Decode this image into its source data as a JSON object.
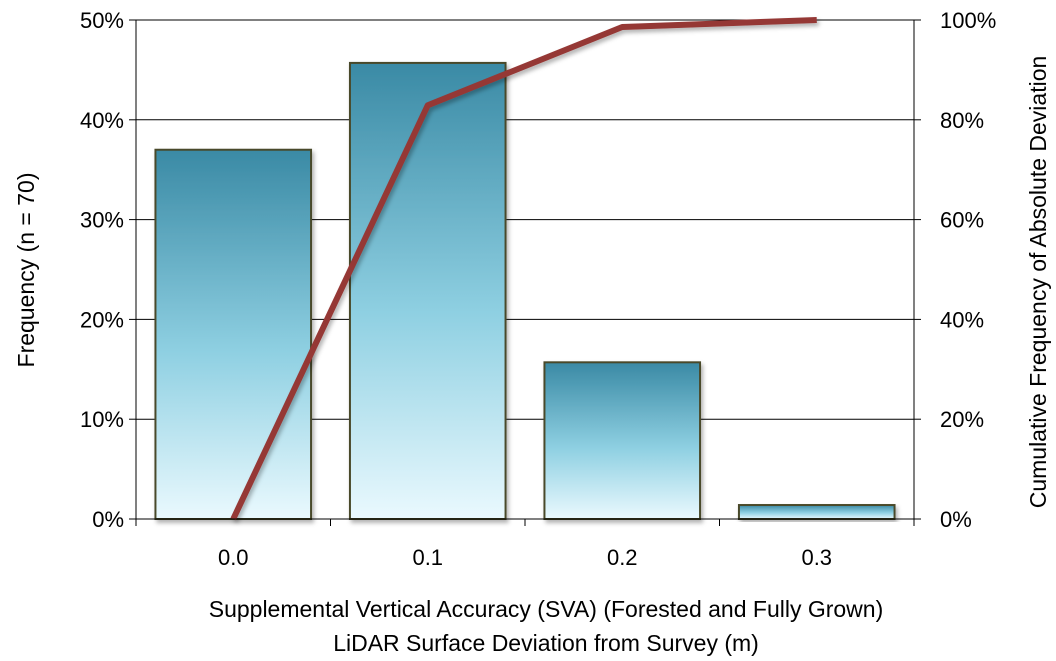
{
  "chart_data": {
    "type": "bar",
    "categories": [
      "0.0",
      "0.1",
      "0.2",
      "0.3"
    ],
    "series": [
      {
        "type": "bar",
        "axis": "left",
        "values": [
          37,
          45.7,
          15.7,
          1.4
        ],
        "color": "#3d8ca6"
      },
      {
        "type": "line",
        "axis": "right",
        "x": [
          0.0,
          0.1,
          0.2,
          0.3
        ],
        "values": [
          0,
          82.9,
          98.6,
          100
        ],
        "color": "#953735"
      }
    ],
    "xlabel": [
      "Supplemental Vertical Accuracy (SVA) (Forested and Fully Grown)",
      "LiDAR Surface Deviation from Survey (m)"
    ],
    "ylabel": "Frequency (n = 70)",
    "y2label": "Cumulative Frequency of Absolute Deviation",
    "ylim": [
      0,
      50
    ],
    "y2lim": [
      0,
      100
    ],
    "yticks": [
      "0%",
      "10%",
      "20%",
      "30%",
      "40%",
      "50%"
    ],
    "y2ticks": [
      "0%",
      "20%",
      "40%",
      "60%",
      "80%",
      "100%"
    ],
    "grid": true,
    "legend": "none"
  }
}
